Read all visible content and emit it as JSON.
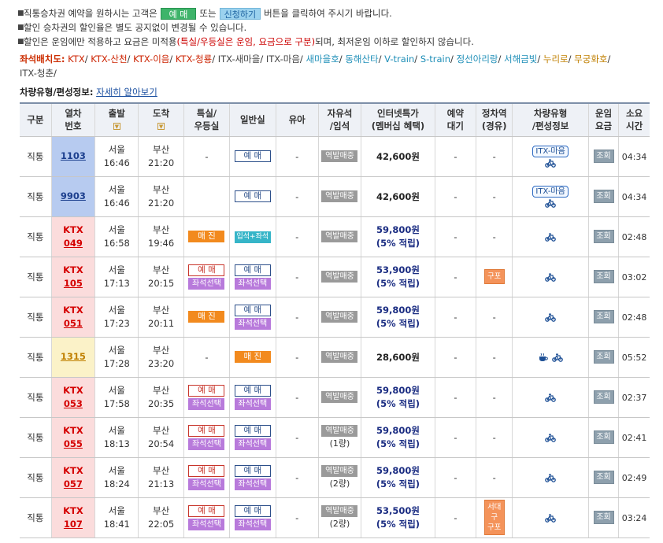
{
  "notices": {
    "line1": {
      "before": "직통승차권 예약을 원하시는 고객은",
      "btn1": "예 매",
      "mid": "또는",
      "btn2": "신청하기",
      "after": "버튼을 클릭하여 주시기 바랍니다."
    },
    "line2": "할인 승차권의 할인율은 별도 공지없이 변경될 수 있습니다.",
    "line3": {
      "before": "할인은 운임에만 적용하고 요금은 미적용",
      "highlight": "(특실/우등실은 운임, 요금으로 구분)",
      "after": "되며, 최저운임 이하로 할인하지 않습니다."
    }
  },
  "seat_legend": {
    "label": "좌석배치도:",
    "items": [
      {
        "text": "KTX",
        "color": "#cc2200"
      },
      {
        "text": "KTX-산천",
        "color": "#cc2200"
      },
      {
        "text": "KTX-이음",
        "color": "#cc2200"
      },
      {
        "text": "KTX-청룡",
        "color": "#cc2200"
      },
      {
        "text": "ITX-새마을",
        "color": "#444444"
      },
      {
        "text": "ITX-마음",
        "color": "#444444"
      },
      {
        "text": "새마을호",
        "color": "#1f8fb8"
      },
      {
        "text": "동해산타",
        "color": "#1f8fb8"
      },
      {
        "text": "V-train",
        "color": "#1f8fb8"
      },
      {
        "text": "S-train",
        "color": "#1f8fb8"
      },
      {
        "text": "정선아리랑",
        "color": "#1f8fb8"
      },
      {
        "text": "서해금빛",
        "color": "#1f8fb8"
      },
      {
        "text": "누리로",
        "color": "#c07f00"
      },
      {
        "text": "무궁화호",
        "color": "#c07f00"
      },
      {
        "text": "ITX-청춘",
        "color": "#444444"
      }
    ]
  },
  "vehicle_type": {
    "label": "차량유형/편성정보:",
    "link": "자세히 알아보기"
  },
  "table": {
    "headers": {
      "type": "구분",
      "train_no_1": "열차",
      "train_no_2": "번호",
      "dep": "출발",
      "arr": "도착",
      "special_1": "특실/",
      "special_2": "우등실",
      "general": "일반실",
      "baby": "유아",
      "free_1": "자유석",
      "free_2": "/입석",
      "internet_1": "인터넷특가",
      "internet_2": "(멤버십 혜택)",
      "wait_1": "예약",
      "wait_2": "대기",
      "stop_1": "정차역",
      "stop_2": "(경유)",
      "vtype_1": "차량유형",
      "vtype_2": "/편성정보",
      "fare_1": "운임",
      "fare_2": "요금",
      "time_1": "소요",
      "time_2": "시간"
    },
    "rows": [
      {
        "kind": "직통",
        "tn1": "",
        "tn2": "1103",
        "color": "blue",
        "dep_st": "서울",
        "dep_t": "16:46",
        "arr_st": "부산",
        "arr_t": "21:20",
        "special": [
          "-"
        ],
        "general": [
          "예매"
        ],
        "baby": "-",
        "free": [
          "역발매중"
        ],
        "fare": "42,600원",
        "fare2": "",
        "wait": "-",
        "via": "-",
        "vtype": "ITX-마음",
        "view": "조회",
        "dur": "04:34"
      },
      {
        "kind": "직통",
        "tn1": "",
        "tn2": "9903",
        "color": "blue",
        "dep_st": "서울",
        "dep_t": "16:46",
        "arr_st": "부산",
        "arr_t": "21:20",
        "special": [
          ""
        ],
        "general": [
          "예매"
        ],
        "baby": "-",
        "free": [
          "역발매중"
        ],
        "fare": "42,600원",
        "fare2": "",
        "wait": "-",
        "via": "-",
        "vtype": "ITX-마음",
        "view": "조회",
        "dur": "04:34"
      },
      {
        "kind": "직통",
        "tn1": "KTX",
        "tn2": "049",
        "color": "red",
        "dep_st": "서울",
        "dep_t": "16:58",
        "arr_st": "부산",
        "arr_t": "19:46",
        "special": [
          "sold"
        ],
        "general": [
          "stand"
        ],
        "baby": "-",
        "free": [
          "역발매중"
        ],
        "fare": "59,800원",
        "fare2": "(5% 적립)",
        "wait": "-",
        "via": "-",
        "vtype": "",
        "view": "조회",
        "dur": "02:48"
      },
      {
        "kind": "직통",
        "tn1": "KTX",
        "tn2": "105",
        "color": "red",
        "dep_st": "서울",
        "dep_t": "17:13",
        "arr_st": "부산",
        "arr_t": "20:15",
        "special": [
          "res-r",
          "seat"
        ],
        "general": [
          "res",
          "seat"
        ],
        "baby": "-",
        "free": [
          "역발매중"
        ],
        "fare": "53,900원",
        "fare2": "(5% 적립)",
        "wait": "-",
        "via": "구포",
        "vtype": "",
        "view": "조회",
        "dur": "03:02"
      },
      {
        "kind": "직통",
        "tn1": "KTX",
        "tn2": "051",
        "color": "red",
        "dep_st": "서울",
        "dep_t": "17:23",
        "arr_st": "부산",
        "arr_t": "20:11",
        "special": [
          "sold"
        ],
        "general": [
          "res",
          "seat"
        ],
        "baby": "-",
        "free": [
          "역발매중"
        ],
        "fare": "59,800원",
        "fare2": "(5% 적립)",
        "wait": "-",
        "via": "-",
        "vtype": "",
        "view": "조회",
        "dur": "02:48"
      },
      {
        "kind": "직통",
        "tn1": "",
        "tn2": "1315",
        "color": "yellow",
        "dep_st": "서울",
        "dep_t": "17:28",
        "arr_st": "부산",
        "arr_t": "23:20",
        "special": [
          "-"
        ],
        "general": [
          "sold"
        ],
        "baby": "-",
        "free": [
          "역발매중"
        ],
        "fare": "28,600원",
        "fare2": "",
        "wait": "-",
        "via": "-",
        "vtype": "",
        "view": "조회",
        "dur": "05:52"
      },
      {
        "kind": "직통",
        "tn1": "KTX",
        "tn2": "053",
        "color": "red",
        "dep_st": "서울",
        "dep_t": "17:58",
        "arr_st": "부산",
        "arr_t": "20:35",
        "special": [
          "res-r",
          "seat"
        ],
        "general": [
          "res",
          "seat"
        ],
        "baby": "-",
        "free": [
          "역발매중"
        ],
        "fare": "59,800원",
        "fare2": "(5% 적립)",
        "wait": "-",
        "via": "-",
        "vtype": "",
        "view": "조회",
        "dur": "02:37"
      },
      {
        "kind": "직통",
        "tn1": "KTX",
        "tn2": "055",
        "color": "red",
        "dep_st": "서울",
        "dep_t": "18:13",
        "arr_st": "부산",
        "arr_t": "20:54",
        "special": [
          "res-r",
          "seat"
        ],
        "general": [
          "res",
          "seat"
        ],
        "baby": "-",
        "free": [
          "역발매중",
          "(1량)"
        ],
        "fare": "59,800원",
        "fare2": "(5% 적립)",
        "wait": "-",
        "via": "-",
        "vtype": "",
        "view": "조회",
        "dur": "02:41"
      },
      {
        "kind": "직통",
        "tn1": "KTX",
        "tn2": "057",
        "color": "red",
        "dep_st": "서울",
        "dep_t": "18:24",
        "arr_st": "부산",
        "arr_t": "21:13",
        "special": [
          "res-r",
          "seat"
        ],
        "general": [
          "res",
          "seat"
        ],
        "baby": "-",
        "free": [
          "역발매중",
          "(2량)"
        ],
        "fare": "59,800원",
        "fare2": "(5% 적립)",
        "wait": "-",
        "via": "-",
        "vtype": "",
        "view": "조회",
        "dur": "02:49"
      },
      {
        "kind": "직통",
        "tn1": "KTX",
        "tn2": "107",
        "color": "red",
        "dep_st": "서울",
        "dep_t": "18:41",
        "arr_st": "부산",
        "arr_t": "22:05",
        "special": [
          "res-r",
          "seat"
        ],
        "general": [
          "res",
          "seat"
        ],
        "baby": "-",
        "free": [
          "역발매중",
          "(2량)"
        ],
        "fare": "53,500원",
        "fare2": "(5% 적립)",
        "wait": "-",
        "via": "서대구\n구포",
        "vtype": "",
        "view": "조회",
        "dur": "03:24"
      }
    ],
    "labels": {
      "res": "예 매",
      "sold": "매 진",
      "seat": "좌석선택",
      "stand": "입석+좌석"
    }
  }
}
